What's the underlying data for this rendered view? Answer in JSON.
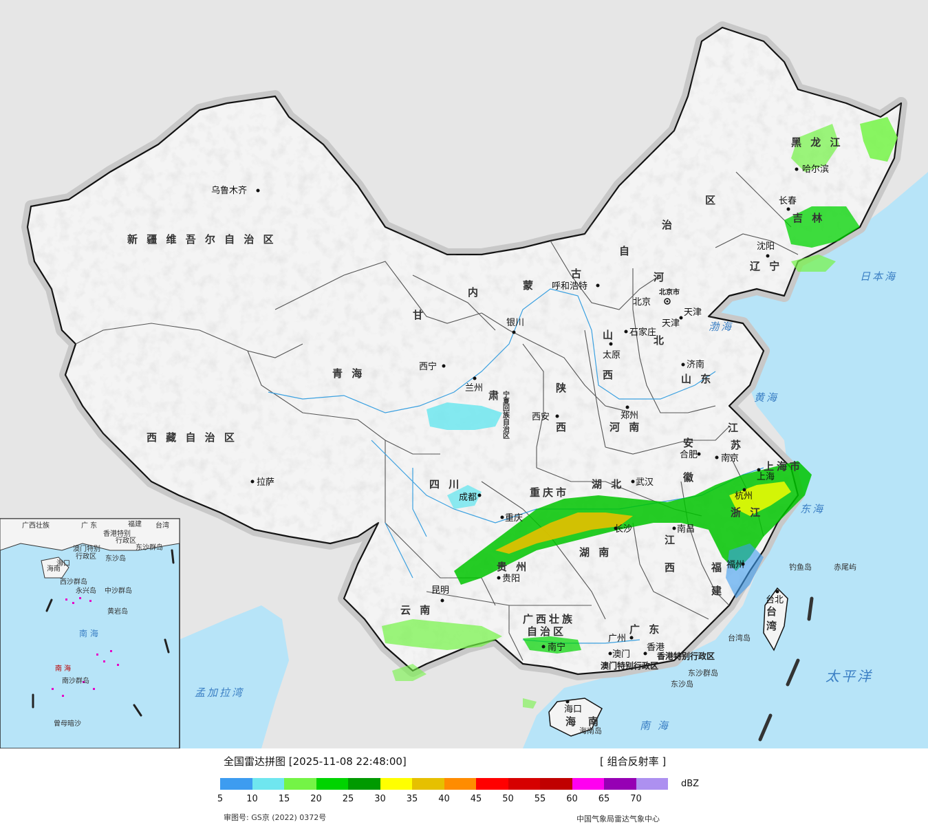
{
  "legend": {
    "title": "全国雷达拼图 [2025-11-08 22:48:00]",
    "product": "[ 组合反射率 ]",
    "unit": "dBZ",
    "ticks": [
      "5",
      "10",
      "15",
      "20",
      "25",
      "30",
      "35",
      "40",
      "45",
      "50",
      "55",
      "60",
      "65",
      "70"
    ],
    "colors": [
      "#3d9cf0",
      "#6fe6ef",
      "#74f446",
      "#00d400",
      "#009a00",
      "#ffff00",
      "#e6c000",
      "#ff8c00",
      "#ff0000",
      "#d60000",
      "#c00000",
      "#ff00f0",
      "#9600b4",
      "#ad90f0"
    ]
  },
  "footer": {
    "approval": "审图号: GS京 (2022) 0372号",
    "producer": "中国气象局雷达气象中心"
  },
  "provinces": [
    "新疆维吾尔自治区",
    "西藏自治区",
    "青海",
    "甘肃",
    "四川",
    "云南",
    "内蒙古自治区",
    "黑龙江",
    "吉林",
    "辽宁",
    "河北",
    "山西",
    "陕西",
    "河南",
    "山东",
    "江苏",
    "安徽",
    "湖北",
    "湖南",
    "江西",
    "浙江",
    "福建",
    "广东",
    "广西壮族自治区",
    "贵州",
    "重庆市",
    "海南",
    "台湾",
    "宁夏回族自治区",
    "上海市"
  ],
  "province_labels": {
    "xinjiang": "新 疆 维 吾 尔 自 治 区",
    "xizang": "西 藏 自 治 区",
    "qinghai": "青 海",
    "gansu": "甘",
    "sichuan": "四 川",
    "yunnan": "云 南",
    "neimenggu_1": "内",
    "neimenggu_2": "蒙",
    "neimenggu_3": "古",
    "neimenggu_4": "自",
    "neimenggu_5": "治",
    "neimenggu_6": "区",
    "heilongjiang": "黑 龙 江",
    "jilin": "吉 林",
    "liaoning": "辽 宁",
    "hebei_1": "河",
    "hebei_2": "北",
    "shanxi_1": "山",
    "shanxi_2": "西",
    "shaanxi_1": "陕",
    "shaanxi_2": "西",
    "henan": "河 南",
    "shandong": "山 东",
    "jiangsu_1": "江",
    "jiangsu_2": "苏",
    "anhui_1": "安",
    "anhui_2": "徽",
    "hubei": "湖 北",
    "hunan": "湖 南",
    "jiangxi_1": "江",
    "jiangxi_2": "西",
    "zhejiang": "浙 江",
    "fujian_1": "福",
    "fujian_2": "建",
    "guangdong": "广 东",
    "guangxi_1": "广西壮族",
    "guangxi_2": "自治区",
    "guizhou": "贵 州",
    "chongqing": "重庆市",
    "hainan_1": "海",
    "hainan_2": "南",
    "taiwan_1": "台",
    "taiwan_2": "湾",
    "ningxia": "宁夏回族自治区",
    "shanghai": "上海市",
    "tianjin": "天津",
    "beijing_shi": "北京市",
    "gansu_2": "肃",
    "hk_sar": "香港特别行政区",
    "macau_sar": "澳门特别行政区"
  },
  "cities": {
    "urumqi": "乌鲁木齐",
    "lhasa": "拉萨",
    "xining": "西宁",
    "lanzhou": "兰州",
    "yinchuan": "银川",
    "hohhot": "呼和浩特",
    "beijing": "北京",
    "tianjin": "天津",
    "shijiazhuang": "石家庄",
    "taiyuan": "太原",
    "jinan": "济南",
    "xian": "西安",
    "zhengzhou": "郑州",
    "hefei": "合肥",
    "nanjing": "南京",
    "shanghai": "上海",
    "hangzhou": "杭州",
    "wuhan": "武汉",
    "chengdu": "成都",
    "chongqing": "重庆",
    "changsha": "长沙",
    "nanchang": "南昌",
    "fuzhou": "福州",
    "guiyang": "贵阳",
    "kunming": "昆明",
    "nanning": "南宁",
    "guangzhou": "广州",
    "hongkong": "香港",
    "macau": "澳门",
    "haikou": "海口",
    "taipei": "台北",
    "harbin": "哈尔滨",
    "changchun": "长春",
    "shenyang": "沈阳"
  },
  "seas": {
    "japan_sea": "日本海",
    "bohai": "渤海",
    "yellow_sea": "黄海",
    "east_sea": "东海",
    "pacific": "太平洋",
    "south_sea": "南 海",
    "bay_bengal": "孟加拉湾",
    "south_sea_inset": "南 海"
  },
  "islands": {
    "diaoyu": "钓鱼岛",
    "chiwei": "赤尾屿",
    "taiwan_island": "台湾岛",
    "dongsha_1": "东沙群岛",
    "dongsha_2": "东沙岛",
    "hainan_island": "海南岛"
  },
  "inset": {
    "guangxi": "广西壮族",
    "guangdong": "广 东",
    "fujian": "福建",
    "taiwan": "台湾",
    "hk": "香港特别",
    "hk2": "行政区",
    "macau": "澳门特别",
    "macau2": "行政区",
    "dongsha": "东沙群岛",
    "dongsha2": "东沙岛",
    "haikou": "海口",
    "hainan": "海南",
    "xisha": "西沙群岛",
    "zhongsha": "中沙群岛",
    "huangyan": "黄岩岛",
    "yongxing": "永兴岛",
    "nansha": "南沙群岛",
    "zengmu": "曾母暗沙",
    "south_sea": "南 海",
    "sea_label": "南 海"
  }
}
